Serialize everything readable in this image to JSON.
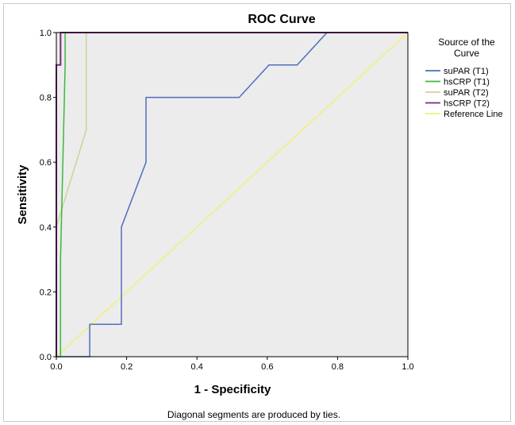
{
  "chart_data": {
    "type": "line",
    "title": "ROC Curve",
    "xlabel": "1 - Specificity",
    "ylabel": "Sensitivity",
    "xlim": [
      0,
      1
    ],
    "ylim": [
      0,
      1
    ],
    "xticks": [
      "0.0",
      "0.2",
      "0.4",
      "0.6",
      "0.8",
      "1.0"
    ],
    "yticks": [
      "0.0",
      "0.2",
      "0.4",
      "0.6",
      "0.8",
      "1.0"
    ],
    "grid": false,
    "legend_title": "Source of the Curve",
    "legend_position": "right",
    "footnote": "Diagonal segments are produced by ties.",
    "series": [
      {
        "name": "suPAR (T1)",
        "color": "#4e6fbd",
        "x": [
          0,
          0.095,
          0.095,
          0.185,
          0.185,
          0.255,
          0.255,
          0.52,
          0.605,
          0.685,
          0.77,
          1.0
        ],
        "y": [
          0,
          0,
          0.1,
          0.1,
          0.4,
          0.6,
          0.8,
          0.8,
          0.9,
          0.9,
          1.0,
          1.0
        ]
      },
      {
        "name": "hsCRP (T1)",
        "color": "#3cb93c",
        "x": [
          0,
          0.012,
          0.012,
          0.025,
          0.025,
          1.0
        ],
        "y": [
          0,
          0,
          0.3,
          0.9,
          1.0,
          1.0
        ]
      },
      {
        "name": "suPAR (T2)",
        "color": "#d0d09e",
        "x": [
          0,
          0.0,
          0.085,
          0.085,
          1.0
        ],
        "y": [
          0,
          0.4,
          0.7,
          1.0,
          1.0
        ]
      },
      {
        "name": "hsCRP (T2)",
        "color": "#7a2a7a",
        "x": [
          0,
          0,
          0.012,
          0.012,
          1.0
        ],
        "y": [
          0,
          0.9,
          0.9,
          1.0,
          1.0
        ]
      },
      {
        "name": "Reference Line",
        "color": "#f0f07a",
        "x": [
          0,
          1
        ],
        "y": [
          0,
          1
        ]
      }
    ]
  }
}
